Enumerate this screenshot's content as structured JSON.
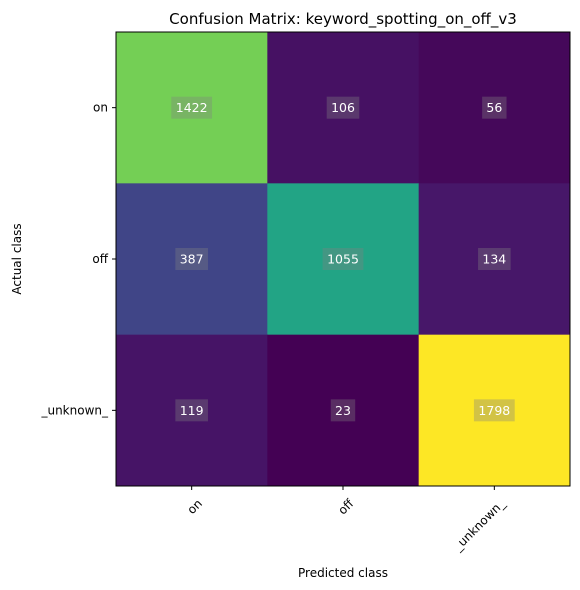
{
  "chart_data": {
    "type": "heatmap",
    "title": "Confusion Matrix: keyword_spotting_on_off_v3",
    "xlabel": "Predicted class",
    "ylabel": "Actual class",
    "x_categories": [
      "on",
      "off",
      "_unknown_"
    ],
    "y_categories": [
      "on",
      "off",
      "_unknown_"
    ],
    "values": [
      [
        1422,
        106,
        56
      ],
      [
        387,
        1055,
        134
      ],
      [
        119,
        23,
        1798
      ]
    ],
    "colormap": "viridis",
    "color_range": [
      23,
      1798
    ],
    "grid": false,
    "x_tick_rotation_deg": 45
  }
}
